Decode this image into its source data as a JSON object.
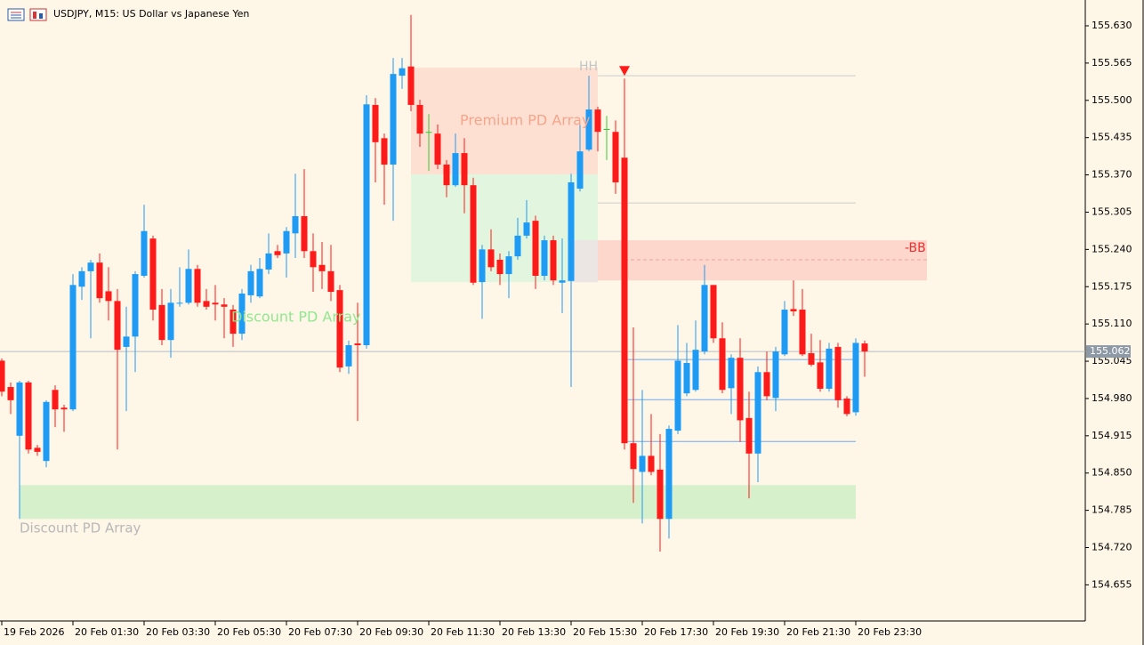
{
  "chart_data": {
    "type": "candlestick",
    "title": "USDJPY, M15:  US Dollar vs Japanese Yen",
    "categories": [
      "19 Feb 2026",
      null,
      null,
      null,
      null,
      null,
      null,
      null,
      "20 Feb 01:30",
      null,
      null,
      null,
      null,
      null,
      null,
      null,
      "20 Feb 03:30",
      null,
      null,
      null,
      null,
      null,
      null,
      null,
      "20 Feb 05:30",
      null,
      null,
      null,
      null,
      null,
      null,
      null,
      "20 Feb 07:30",
      null,
      null,
      null,
      null,
      null,
      null,
      null,
      "20 Feb 09:30",
      null,
      null,
      null,
      null,
      null,
      null,
      null,
      "20 Feb 11:30",
      null,
      null,
      null,
      null,
      null,
      null,
      null,
      "20 Feb 13:30",
      null,
      null,
      null,
      null,
      null,
      null,
      null,
      "20 Feb 15:30",
      null,
      null,
      null,
      null,
      null,
      null,
      null,
      "20 Feb 17:30",
      null,
      null,
      null,
      null,
      null,
      null,
      null,
      "20 Feb 19:30",
      null,
      null,
      null,
      null,
      null,
      null,
      null,
      "20 Feb 21:30",
      null,
      null,
      null,
      null,
      null,
      null,
      null,
      "20 Feb 23:30",
      null
    ],
    "open": [
      155.046,
      155.0,
      154.915,
      155.008,
      154.894,
      154.871,
      154.995,
      154.964,
      154.961,
      155.175,
      155.202,
      155.217,
      155.167,
      155.15,
      155.07,
      155.088,
      155.194,
      155.259,
      155.143,
      155.082,
      155.146,
      155.147,
      155.206,
      155.15,
      155.147,
      155.144,
      155.135,
      155.093,
      155.16,
      155.158,
      155.205,
      155.237,
      155.233,
      155.268,
      155.298,
      155.237,
      155.213,
      155.202,
      155.169,
      155.036,
      155.076,
      155.073,
      155.492,
      155.434,
      155.388,
      155.543,
      155.559,
      155.492,
      155.445,
      155.442,
      155.388,
      155.352,
      155.408,
      155.352,
      155.183,
      155.24,
      155.222,
      155.197,
      155.228,
      155.264,
      155.29,
      155.194,
      155.256,
      155.182,
      155.185,
      155.346,
      155.414,
      155.484,
      155.45,
      155.445,
      155.4,
      154.902,
      154.852,
      154.88,
      154.856,
      154.77,
      154.924,
      154.989,
      154.995,
      155.062,
      155.178,
      155.085,
      154.998,
      155.051,
      154.946,
      154.884,
      155.026,
      154.981,
      155.057,
      155.136,
      155.135,
      155.059,
      155.043,
      154.997,
      155.07,
      154.98,
      154.956,
      155.076
    ],
    "high": [
      155.05,
      155.008,
      155.011,
      155.011,
      154.899,
      154.977,
      155.003,
      154.969,
      155.197,
      155.209,
      155.222,
      155.233,
      155.209,
      155.171,
      155.14,
      155.202,
      155.318,
      155.264,
      155.171,
      155.171,
      155.209,
      155.24,
      155.213,
      155.171,
      155.178,
      155.155,
      155.143,
      155.171,
      155.213,
      155.225,
      155.268,
      155.248,
      155.279,
      155.372,
      155.38,
      155.268,
      155.253,
      155.248,
      155.178,
      155.081,
      155.147,
      155.509,
      155.504,
      155.442,
      155.574,
      155.574,
      155.649,
      155.501,
      155.476,
      155.458,
      155.396,
      155.442,
      155.434,
      155.365,
      155.248,
      155.275,
      155.233,
      155.237,
      155.295,
      155.326,
      155.299,
      155.264,
      155.264,
      155.259,
      155.372,
      155.458,
      155.543,
      155.489,
      155.473,
      155.465,
      155.538,
      155.104,
      154.995,
      154.953,
      154.918,
      154.933,
      155.108,
      155.077,
      155.116,
      155.213,
      155.178,
      155.113,
      155.057,
      155.085,
      154.992,
      155.036,
      155.062,
      155.07,
      155.15,
      155.186,
      155.171,
      155.093,
      155.082,
      155.077,
      155.077,
      154.984,
      155.085,
      155.081
    ],
    "low": [
      154.984,
      154.953,
      154.77,
      154.884,
      154.88,
      154.86,
      154.93,
      154.922,
      154.958,
      155.152,
      155.085,
      155.147,
      155.116,
      154.891,
      154.958,
      155.026,
      155.191,
      155.116,
      155.073,
      155.051,
      155.14,
      155.144,
      155.14,
      155.135,
      155.116,
      155.085,
      155.07,
      155.082,
      155.147,
      155.155,
      155.197,
      155.225,
      155.191,
      155.225,
      155.225,
      155.166,
      155.171,
      155.15,
      155.026,
      155.023,
      154.941,
      155.067,
      155.357,
      155.318,
      155.29,
      155.52,
      155.481,
      155.419,
      155.377,
      155.38,
      155.331,
      155.349,
      155.303,
      155.178,
      155.119,
      155.202,
      155.178,
      155.155,
      155.222,
      155.259,
      155.171,
      155.186,
      155.178,
      155.129,
      155.0,
      155.341,
      155.411,
      155.411,
      155.396,
      155.337,
      154.891,
      154.798,
      154.762,
      154.846,
      154.713,
      154.736,
      154.918,
      154.984,
      154.992,
      155.057,
      155.077,
      154.989,
      154.953,
      154.904,
      154.806,
      154.834,
      154.977,
      154.958,
      155.054,
      155.124,
      155.054,
      155.036,
      154.992,
      154.992,
      154.964,
      154.949,
      154.95,
      155.018
    ],
    "close": [
      154.992,
      154.977,
      155.008,
      154.891,
      154.887,
      154.974,
      154.961,
      154.961,
      155.178,
      155.202,
      155.217,
      155.155,
      155.15,
      155.065,
      155.088,
      155.197,
      155.272,
      155.135,
      155.082,
      155.147,
      155.147,
      155.206,
      155.147,
      155.14,
      155.144,
      155.14,
      155.093,
      155.163,
      155.202,
      155.206,
      155.233,
      155.23,
      155.272,
      155.298,
      155.237,
      155.209,
      155.202,
      155.166,
      155.034,
      155.073,
      155.073,
      155.493,
      155.427,
      155.388,
      155.546,
      155.556,
      155.492,
      155.442,
      155.445,
      155.388,
      155.352,
      155.408,
      155.352,
      155.182,
      155.24,
      155.209,
      155.197,
      155.228,
      155.264,
      155.287,
      155.194,
      155.256,
      155.186,
      155.186,
      155.357,
      155.411,
      155.484,
      155.445,
      155.45,
      155.357,
      154.902,
      154.857,
      154.88,
      154.852,
      154.77,
      154.927,
      155.046,
      155.042,
      155.065,
      155.178,
      155.085,
      154.995,
      155.051,
      154.942,
      154.884,
      155.026,
      154.984,
      155.062,
      155.135,
      155.132,
      155.057,
      155.039,
      154.997,
      155.067,
      154.977,
      154.953,
      155.077,
      155.062
    ],
    "colors": {
      "up": "#1e9bf5",
      "down": "#ff1a1a",
      "doji": "#33cc33"
    },
    "xlim": [
      -0.2,
      121.8
    ],
    "ylim": [
      154.592,
      155.675
    ],
    "yticks": [
      {
        "value": 155.63,
        "label": "155.630"
      },
      {
        "value": 155.565,
        "label": "155.565"
      },
      {
        "value": 155.5,
        "label": "155.500"
      },
      {
        "value": 155.435,
        "label": "155.435"
      },
      {
        "value": 155.37,
        "label": "155.370"
      },
      {
        "value": 155.305,
        "label": "155.305"
      },
      {
        "value": 155.24,
        "label": "155.240"
      },
      {
        "value": 155.175,
        "label": "155.175"
      },
      {
        "value": 155.11,
        "label": "155.110"
      },
      {
        "value": 155.045,
        "label": "155.045"
      },
      {
        "value": 154.98,
        "label": "154.980"
      },
      {
        "value": 154.915,
        "label": "154.915"
      },
      {
        "value": 154.85,
        "label": "154.850"
      },
      {
        "value": 154.785,
        "label": "154.785"
      },
      {
        "value": 154.72,
        "label": "154.720"
      },
      {
        "value": 154.655,
        "label": "154.655"
      }
    ],
    "current_price": {
      "value": 155.062,
      "label": "155.062"
    },
    "zones": [
      {
        "from": 46,
        "to": 67,
        "top": 155.557,
        "bottom": 155.371,
        "color": "#fde0d2"
      },
      {
        "from": 46,
        "to": 67,
        "top": 155.371,
        "bottom": 155.183,
        "color": "#e2f5de"
      },
      {
        "from": 64,
        "to": 67,
        "top": 155.256,
        "bottom": 155.183,
        "color": "#ebe6e4"
      },
      {
        "from": 67,
        "to": 104,
        "top": 155.256,
        "bottom": 155.186,
        "color": "#fdd6cc"
      },
      {
        "from": 2,
        "to": 96,
        "top": 154.829,
        "bottom": 154.77,
        "color": "#d6f0cc"
      }
    ],
    "levels": [
      {
        "from": 67,
        "to": 96,
        "price": 155.543,
        "color": "#cccccc"
      },
      {
        "from": 67,
        "to": 96,
        "price": 155.321,
        "color": "#cccccc"
      },
      {
        "from": 70,
        "to": 104,
        "price": 155.222,
        "color": "#e8a8a0"
      },
      {
        "from": 70,
        "to": 96,
        "price": 155.048,
        "color": "#70a8ee"
      },
      {
        "from": 70,
        "to": 96,
        "price": 154.978,
        "color": "#70a8ee"
      },
      {
        "from": 70,
        "to": 96,
        "price": 154.905,
        "color": "#70a8ee"
      }
    ],
    "annotations": [
      "Premium PD Array",
      "HH",
      "-BB",
      "Discount PD Array",
      "Discount PD Array"
    ]
  }
}
